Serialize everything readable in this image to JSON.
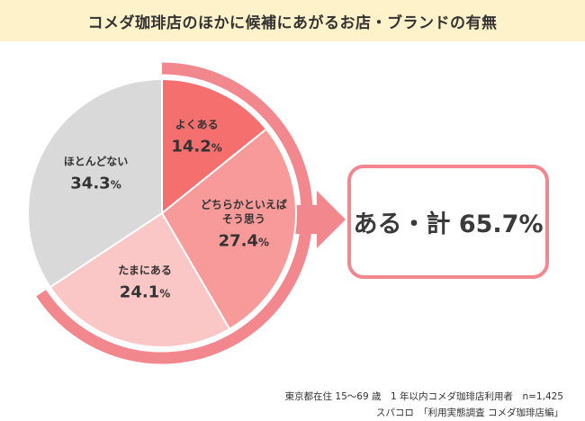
{
  "title": "コメダ珈琲店のほかに候補にあがるお店・ブランドの有無",
  "summary": "ある・計 65.7%",
  "footnote": {
    "line1": "東京都在住 15～69 歳　1 年以内コメダ珈琲店利用者　n=1,425",
    "line2": "スパコロ　「利用実態調査 コメダ珈琲店編」"
  },
  "colors": {
    "title_bg": "#fdf2c9",
    "ring": "#f2878e",
    "arrow": "#f2878e"
  },
  "chart_data": {
    "type": "pie",
    "title": "コメダ珈琲店のほかに候補にあがるお店・ブランドの有無",
    "unit": "%",
    "start": "12 o'clock, clockwise",
    "slices": [
      {
        "label": "よくある",
        "value": 14.2,
        "color": "#f66f6f"
      },
      {
        "label": "どちらかといえば そう思う",
        "value": 27.4,
        "color": "#f89a9a"
      },
      {
        "label": "たまにある",
        "value": 24.1,
        "color": "#fbc6c6"
      },
      {
        "label": "ほとんどない",
        "value": 34.3,
        "color": "#d9d9d9"
      }
    ],
    "group_total": {
      "label": "ある・計",
      "value": 65.7
    }
  }
}
